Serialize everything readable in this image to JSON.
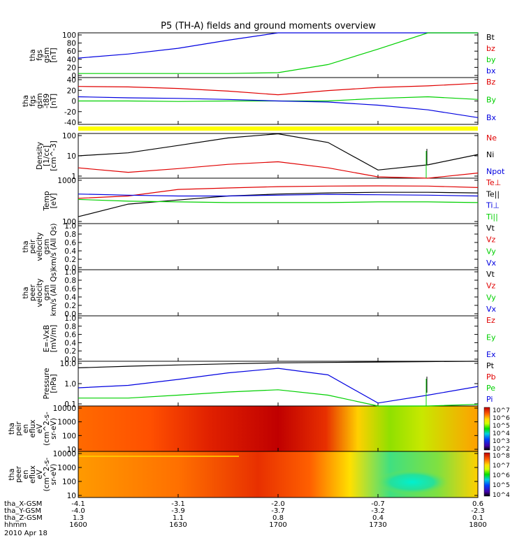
{
  "title": "P5 (TH-A) fields and ground moments overview",
  "colors": {
    "black": "#000000",
    "red": "#e00000",
    "green": "#00d000",
    "blue": "#0000e0",
    "yellow": "#ffff00"
  },
  "panels": [
    {
      "id": "fgs-gsm",
      "ylabel": [
        "tha",
        "fgs",
        "gsm",
        "[nT]"
      ],
      "ticks": [
        "100",
        "80",
        "60",
        "40",
        "20",
        "0"
      ],
      "legend": [
        {
          "text": "Bt",
          "color": "black"
        },
        {
          "text": "bz",
          "color": "red"
        },
        {
          "text": "by",
          "color": "green"
        },
        {
          "text": "bx",
          "color": "blue"
        }
      ]
    },
    {
      "id": "fgs-gsm-t89",
      "ylabel": [
        "tha",
        "fgs",
        "gsm",
        "-t89",
        "[nT]"
      ],
      "ticks": [
        "40",
        "20",
        "0",
        "-20",
        "-40"
      ],
      "legend": [
        {
          "text": "Bz",
          "color": "red"
        },
        {
          "text": "By",
          "color": "green"
        },
        {
          "text": "Bx",
          "color": "blue"
        }
      ]
    },
    {
      "id": "density",
      "ylabel": [
        "Density",
        "[1/cc]",
        "[cm^-3]"
      ],
      "ticks": [
        "100",
        "10",
        "1"
      ],
      "legend": [
        {
          "text": "Ne",
          "color": "red"
        },
        {
          "text": "Ni",
          "color": "black"
        },
        {
          "text": "Npot",
          "color": "blue"
        }
      ]
    },
    {
      "id": "temp",
      "ylabel": [
        "Temp",
        "[eV]"
      ],
      "ticks": [
        "1000",
        "100"
      ],
      "legend": [
        {
          "text": "Te⊥",
          "color": "red"
        },
        {
          "text": "Te||",
          "color": "black"
        },
        {
          "text": "Ti⊥",
          "color": "blue"
        },
        {
          "text": "Ti||",
          "color": "green"
        }
      ]
    },
    {
      "id": "peir-velocity",
      "ylabel": [
        "tha",
        "peir",
        "velocity",
        "gsm",
        "km/s (All Qs)"
      ],
      "ticks": [
        "1.0",
        "0.8",
        "0.6",
        "0.4",
        "0.2",
        "0.0"
      ],
      "legend": [
        {
          "text": "Vt",
          "color": "black"
        },
        {
          "text": "Vz",
          "color": "red"
        },
        {
          "text": "Vy",
          "color": "green"
        },
        {
          "text": "Vx",
          "color": "blue"
        }
      ]
    },
    {
      "id": "peer-velocity",
      "ylabel": [
        "tha",
        "peer",
        "velocity",
        "gsm",
        "km/s (All Qs)"
      ],
      "ticks": [
        "1.0",
        "0.8",
        "0.6",
        "0.4",
        "0.2",
        "0.0"
      ],
      "legend": [
        {
          "text": "Vt",
          "color": "black"
        },
        {
          "text": "Vz",
          "color": "red"
        },
        {
          "text": "Vy",
          "color": "green"
        },
        {
          "text": "Vx",
          "color": "blue"
        }
      ]
    },
    {
      "id": "efield",
      "ylabel": [
        "E=-VxB",
        "[mV/m]"
      ],
      "ticks": [
        "1.0",
        "0.8",
        "0.6",
        "0.4",
        "0.2",
        "0.0"
      ],
      "legend": [
        {
          "text": "Ez",
          "color": "red"
        },
        {
          "text": "Ey",
          "color": "green"
        },
        {
          "text": "Ex",
          "color": "blue"
        }
      ]
    },
    {
      "id": "pressure",
      "ylabel": [
        "Pressure",
        "[nPa]"
      ],
      "ticks": [
        "10.0",
        "1.0",
        "0.1"
      ],
      "legend": [
        {
          "text": "Pt",
          "color": "black"
        },
        {
          "text": "Pb",
          "color": "red"
        },
        {
          "text": "Pe",
          "color": "green"
        },
        {
          "text": "Pi",
          "color": "blue"
        }
      ]
    },
    {
      "id": "peir-spectrogram",
      "ylabel": [
        "tha",
        "peir",
        "en",
        "eflux",
        "eV",
        "(cm^2-s-",
        "sr-eV)"
      ],
      "ticks": [
        "10000",
        "1000",
        "100",
        "10"
      ],
      "colorbar": [
        "10^7",
        "10^6",
        "10^5",
        "10^4",
        "10^3",
        "10^2"
      ]
    },
    {
      "id": "peer-spectrogram",
      "ylabel": [
        "tha",
        "peer",
        "en",
        "eflux",
        "eV",
        "(cm^2-s-",
        "sr-eV)"
      ],
      "ticks": [
        "10000",
        "1000",
        "100",
        "10"
      ],
      "colorbar": [
        "10^8",
        "10^7",
        "10^6",
        "10^5",
        "10^4"
      ]
    }
  ],
  "footer": {
    "row_labels": [
      "tha_X-GSM",
      "tha_Y-GSM",
      "tha_Z-GSM",
      "hhmm",
      "2010 Apr 18"
    ],
    "columns": [
      {
        "x": "-4.1",
        "y": "-4.0",
        "z": "1.3",
        "hhmm": "1600"
      },
      {
        "x": "-3.1",
        "y": "-3.9",
        "z": "1.1",
        "hhmm": "1630"
      },
      {
        "x": "-2.0",
        "y": "-3.7",
        "z": "0.8",
        "hhmm": "1700"
      },
      {
        "x": "-0.7",
        "y": "-3.2",
        "z": "0.4",
        "hhmm": "1730"
      },
      {
        "x": "0.6",
        "y": "-2.3",
        "z": "0.1",
        "hhmm": "1800"
      }
    ]
  },
  "chart_data": {
    "type": "line",
    "x_unit": "hhmm",
    "x": [
      1600,
      1615,
      1630,
      1645,
      1700,
      1715,
      1730,
      1745,
      1800
    ],
    "series": [
      {
        "panel": "fgs-gsm",
        "name": "bx",
        "color": "blue",
        "values": [
          38,
          48,
          62,
          82,
          102,
          130,
          150,
          165,
          175
        ]
      },
      {
        "panel": "fgs-gsm",
        "name": "by",
        "color": "green",
        "values": [
          0,
          0,
          0,
          0,
          2,
          22,
          60,
          100,
          130
        ]
      },
      {
        "panel": "fgs-gsm-t89",
        "name": "Bz",
        "color": "red",
        "values": [
          28,
          27,
          24,
          19,
          12,
          20,
          26,
          29,
          34
        ]
      },
      {
        "panel": "fgs-gsm-t89",
        "name": "By",
        "color": "green",
        "values": [
          0,
          0,
          -1,
          0,
          0,
          0,
          5,
          8,
          3
        ]
      },
      {
        "panel": "fgs-gsm-t89",
        "name": "Bx",
        "color": "blue",
        "values": [
          8,
          6,
          5,
          3,
          0,
          -2,
          -8,
          -17,
          -32
        ]
      },
      {
        "panel": "density",
        "name": "Ni",
        "color": "black",
        "values": [
          10,
          15,
          40,
          110,
          190,
          60,
          1.5,
          3,
          12
        ]
      },
      {
        "panel": "density",
        "name": "Ne",
        "color": "red",
        "values": [
          2,
          1.1,
          1.8,
          3.2,
          4.5,
          2,
          0.6,
          0.5,
          1
        ]
      },
      {
        "panel": "temp",
        "name": "Te⊥",
        "color": "red",
        "values": [
          250,
          300,
          500,
          560,
          620,
          650,
          660,
          650,
          580
        ]
      },
      {
        "panel": "temp",
        "name": "Te||",
        "color": "black",
        "values": [
          60,
          160,
          220,
          300,
          350,
          380,
          400,
          400,
          380
        ]
      },
      {
        "panel": "temp",
        "name": "Ti⊥",
        "color": "blue",
        "values": [
          350,
          320,
          300,
          300,
          320,
          340,
          330,
          320,
          300
        ]
      },
      {
        "panel": "temp",
        "name": "Ti||",
        "color": "green",
        "values": [
          230,
          200,
          190,
          180,
          180,
          180,
          190,
          190,
          180
        ]
      },
      {
        "panel": "pressure",
        "name": "Pt",
        "color": "black",
        "values": [
          8,
          10,
          12,
          14,
          16,
          17,
          18,
          19,
          20
        ]
      },
      {
        "panel": "pressure",
        "name": "Pi",
        "color": "blue",
        "values": [
          0.5,
          0.7,
          1.6,
          4,
          7.5,
          3,
          0.06,
          0.18,
          0.6
        ]
      },
      {
        "panel": "pressure",
        "name": "Pe",
        "color": "green",
        "values": [
          0.12,
          0.12,
          0.18,
          0.28,
          0.38,
          0.18,
          0.02,
          0.03,
          0.05
        ]
      }
    ]
  }
}
